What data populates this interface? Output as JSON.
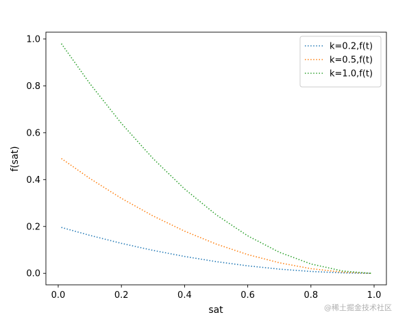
{
  "chart_data": {
    "type": "line",
    "title": "",
    "xlabel": "sat",
    "ylabel": "f(sat)",
    "xlim": [
      -0.039,
      1.039
    ],
    "ylim": [
      -0.049,
      1.029
    ],
    "xticks": [
      0.0,
      0.2,
      0.4,
      0.6,
      0.8,
      1.0
    ],
    "xtick_labels": [
      "0.0",
      "0.2",
      "0.4",
      "0.6",
      "0.8",
      "1.0"
    ],
    "yticks": [
      0.0,
      0.2,
      0.4,
      0.6,
      0.8,
      1.0
    ],
    "ytick_labels": [
      "0.0",
      "0.2",
      "0.4",
      "0.6",
      "0.8",
      "1.0"
    ],
    "grid": false,
    "legend_position": "top-right",
    "series": [
      {
        "name": "k=0.2,f(t)",
        "color": "#1f77b4",
        "line_style": "dotted",
        "x": [
          0.01,
          0.1,
          0.2,
          0.3,
          0.4,
          0.5,
          0.6,
          0.7,
          0.8,
          0.9,
          0.99
        ],
        "y": [
          0.196,
          0.162,
          0.128,
          0.098,
          0.072,
          0.05,
          0.032,
          0.018,
          0.008,
          0.002,
          0.0
        ]
      },
      {
        "name": "k=0.5,f(t)",
        "color": "#ff7f0e",
        "line_style": "dotted",
        "x": [
          0.01,
          0.1,
          0.2,
          0.3,
          0.4,
          0.5,
          0.6,
          0.7,
          0.8,
          0.9,
          0.99
        ],
        "y": [
          0.49,
          0.405,
          0.32,
          0.245,
          0.18,
          0.125,
          0.08,
          0.045,
          0.02,
          0.005,
          0.0
        ]
      },
      {
        "name": "k=1.0,f(t)",
        "color": "#2ca02c",
        "line_style": "dotted",
        "x": [
          0.01,
          0.1,
          0.2,
          0.3,
          0.4,
          0.5,
          0.6,
          0.7,
          0.8,
          0.9,
          0.99
        ],
        "y": [
          0.98,
          0.81,
          0.64,
          0.49,
          0.36,
          0.25,
          0.16,
          0.09,
          0.04,
          0.01,
          0.0
        ]
      }
    ]
  },
  "watermark": "@稀土掘金技术社区"
}
